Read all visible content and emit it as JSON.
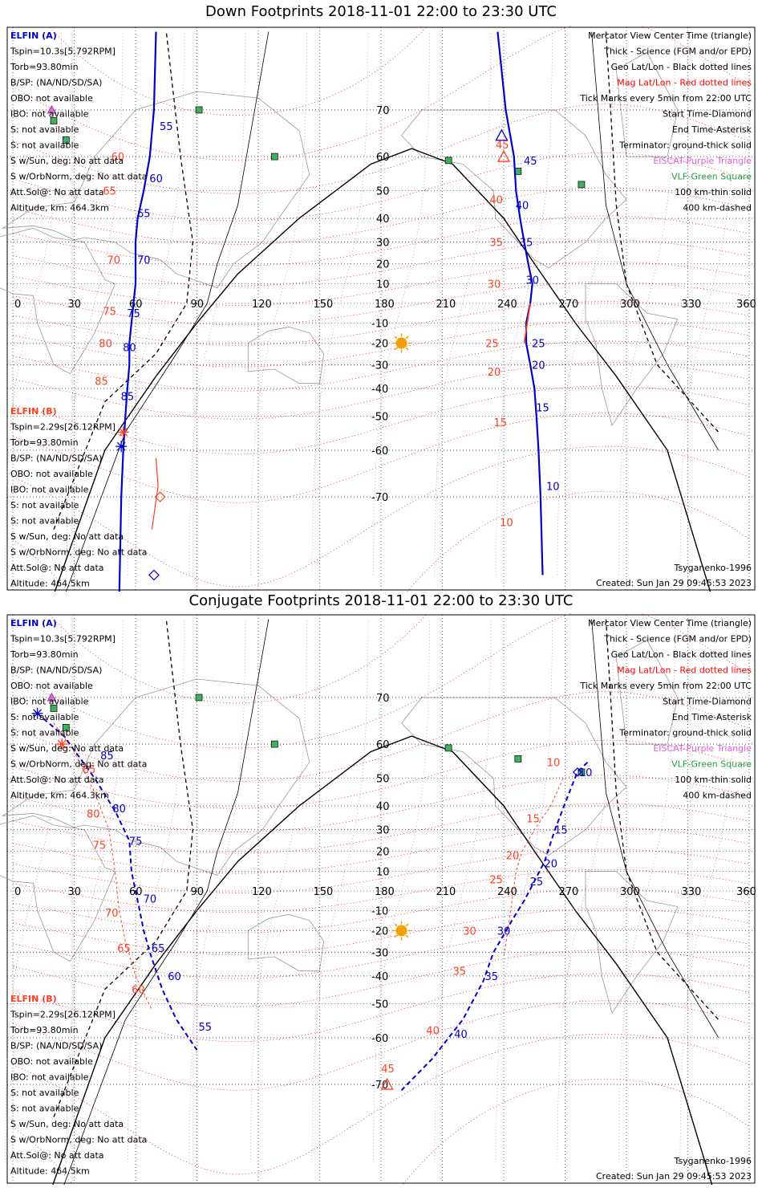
{
  "panels": [
    {
      "title": "Down Footprints 2018-11-01 22:00 to 23:30 UTC",
      "elfin_a": [
        "ELFIN (A)",
        "Tspin=10.3s[5.792RPM]",
        "Torb=93.80min",
        "B/SP: (NA/ND/SD/SA)",
        "OBO: not available",
        "IBO: not available",
        "S: not available",
        "S: not available",
        "S w/Sun, deg: No att data",
        "S w/OrbNorm, deg: No att data",
        "Att.Sol@: No att data",
        "Altitude, km: 464.3km"
      ],
      "elfin_b": [
        "ELFIN (B)",
        "Tspin=2.29s[26.12RPM]",
        "Torb=93.80min",
        "B/SP: (NA/ND/SD/SA)",
        "OBO: not available",
        "IBO: not available",
        "S: not available",
        "S: not available",
        "S w/Sun, deg: No att data",
        "S w/OrbNorm, deg: No att data",
        "Att.Sol@: No att data",
        "Altitude: 464.5km"
      ],
      "legend": [
        {
          "text": "Mercator View Center Time (triangle)",
          "color": "#000000"
        },
        {
          "text": "Thick - Science (FGM and/or EPD)",
          "color": "#000000"
        },
        {
          "text": "Geo Lat/Lon - Black dotted lines",
          "color": "#000000"
        },
        {
          "text": "Mag Lat/Lon - Red dotted lines",
          "color": "#ff0000"
        },
        {
          "text": "Tick Marks every 5min from 22:00 UTC",
          "color": "#000000"
        },
        {
          "text": "Start Time-Diamond",
          "color": "#000000"
        },
        {
          "text": "End Time-Asterisk",
          "color": "#000000"
        },
        {
          "text": "Terminator: ground-thick solid",
          "color": "#000000"
        },
        {
          "text": "EISCAT-Purple Triangle",
          "color": "#e060e0"
        },
        {
          "text": "VLF-Green Square",
          "color": "#20a040"
        },
        {
          "text": "100 km-thin solid",
          "color": "#000000"
        },
        {
          "text": "400 km-dashed",
          "color": "#000000"
        }
      ],
      "model": "Tsyganenko-1996",
      "created": "Created: Sun Jan 29 09:45:53 2023",
      "a_track_labels": [
        {
          "t": "55",
          "lon": 71,
          "lat": 67
        },
        {
          "t": "60",
          "lon": 66,
          "lat": 54
        },
        {
          "t": "65",
          "lon": 60,
          "lat": 42
        },
        {
          "t": "70",
          "lon": 60,
          "lat": 22
        },
        {
          "t": "75",
          "lon": 55,
          "lat": -5
        },
        {
          "t": "80",
          "lon": 53,
          "lat": -22
        },
        {
          "t": "85",
          "lon": 52,
          "lat": -43
        },
        {
          "t": "45",
          "lon": 249,
          "lat": 59
        },
        {
          "t": "40",
          "lon": 245,
          "lat": 45
        },
        {
          "t": "35",
          "lon": 247,
          "lat": 30
        },
        {
          "t": "30",
          "lon": 250,
          "lat": 12
        },
        {
          "t": "25",
          "lon": 253,
          "lat": -20
        },
        {
          "t": "20",
          "lon": 253,
          "lat": -30
        },
        {
          "t": "15",
          "lon": 255,
          "lat": -47
        },
        {
          "t": "10",
          "lon": 260,
          "lat": -68
        }
      ],
      "b_track_labels": [
        {
          "t": "60",
          "lon": 52,
          "lat": 60
        },
        {
          "t": "65",
          "lon": 48,
          "lat": 50
        },
        {
          "t": "70",
          "lon": 50,
          "lat": 22
        },
        {
          "t": "75",
          "lon": 48,
          "lat": -4
        },
        {
          "t": "80",
          "lon": 46,
          "lat": -20
        },
        {
          "t": "85",
          "lon": 44,
          "lat": -37
        },
        {
          "t": "45",
          "lon": 240,
          "lat": 63
        },
        {
          "t": "40",
          "lon": 237,
          "lat": 47
        },
        {
          "t": "35",
          "lon": 237,
          "lat": 30
        },
        {
          "t": "30",
          "lon": 236,
          "lat": 10
        },
        {
          "t": "25",
          "lon": 235,
          "lat": -20
        },
        {
          "t": "20",
          "lon": 236,
          "lat": -33
        },
        {
          "t": "15",
          "lon": 239,
          "lat": -52
        },
        {
          "t": "10",
          "lon": 242,
          "lat": -74
        }
      ]
    },
    {
      "title": "Conjugate Footprints 2018-11-01 22:00 to 23:30 UTC",
      "elfin_a": [
        "ELFIN (A)",
        "Tspin=10.3s[5.792RPM]",
        "Torb=93.80min",
        "B/SP: (NA/ND/SD/SA)",
        "OBO: not available",
        "IBO: not available",
        "S: not available",
        "S: not available",
        "S w/Sun, deg: No att data",
        "S w/OrbNorm, deg: No att data",
        "Att.Sol@: No att data",
        "Altitude, km: 464.3km"
      ],
      "elfin_b": [
        "ELFIN (B)",
        "Tspin=2.29s[26.12RPM]",
        "Torb=93.80min",
        "B/SP: (NA/ND/SD/SA)",
        "OBO: not available",
        "IBO: not available",
        "S: not available",
        "S: not available",
        "S w/Sun, deg: No att data",
        "S w/OrbNorm, deg: No att data",
        "Att.Sol@: No att data",
        "Altitude: 464.5km"
      ],
      "legend": [
        {
          "text": "Mercator View Center Time (triangle)",
          "color": "#000000"
        },
        {
          "text": "Thick - Science (FGM and/or EPD)",
          "color": "#000000"
        },
        {
          "text": "Geo Lat/Lon - Black dotted lines",
          "color": "#000000"
        },
        {
          "text": "Mag Lat/Lon - Red dotted lines",
          "color": "#ff0000"
        },
        {
          "text": "Tick Marks every 5min from 22:00 UTC",
          "color": "#000000"
        },
        {
          "text": "Start Time-Diamond",
          "color": "#000000"
        },
        {
          "text": "End Time-Asterisk",
          "color": "#000000"
        },
        {
          "text": "Terminator: ground-thick solid",
          "color": "#000000"
        },
        {
          "text": "EISCAT-Purple Triangle",
          "color": "#e060e0"
        },
        {
          "text": "VLF-Green Square",
          "color": "#20a040"
        },
        {
          "text": "100 km-thin solid",
          "color": "#000000"
        },
        {
          "text": "400 km-dashed",
          "color": "#000000"
        }
      ],
      "model": "Tsyganenko-1996",
      "created": "Created: Sun Jan 29 09:45:53 2023",
      "a_track_labels": [
        {
          "t": "85",
          "lon": 42,
          "lat": 57
        },
        {
          "t": "80",
          "lon": 48,
          "lat": 39
        },
        {
          "t": "75",
          "lon": 56,
          "lat": 25
        },
        {
          "t": "70",
          "lon": 63,
          "lat": -4
        },
        {
          "t": "65",
          "lon": 67,
          "lat": -28
        },
        {
          "t": "60",
          "lon": 75,
          "lat": -40
        },
        {
          "t": "55",
          "lon": 90,
          "lat": -57
        },
        {
          "t": "10",
          "lon": 276,
          "lat": 52
        },
        {
          "t": "15",
          "lon": 264,
          "lat": 30
        },
        {
          "t": "20",
          "lon": 259,
          "lat": 14
        },
        {
          "t": "25",
          "lon": 252,
          "lat": 5
        },
        {
          "t": "30",
          "lon": 236,
          "lat": -20
        },
        {
          "t": "35",
          "lon": 230,
          "lat": -40
        },
        {
          "t": "40",
          "lon": 215,
          "lat": -59
        }
      ],
      "b_track_labels": [
        {
          "t": "85",
          "lon": 38,
          "lat": 53
        },
        {
          "t": "80",
          "lon": 40,
          "lat": 37
        },
        {
          "t": "75",
          "lon": 43,
          "lat": 23
        },
        {
          "t": "70",
          "lon": 49,
          "lat": -11
        },
        {
          "t": "65",
          "lon": 55,
          "lat": -28
        },
        {
          "t": "60",
          "lon": 62,
          "lat": -45
        },
        {
          "t": "10",
          "lon": 265,
          "lat": 55
        },
        {
          "t": "15",
          "lon": 255,
          "lat": 35
        },
        {
          "t": "20",
          "lon": 245,
          "lat": 18
        },
        {
          "t": "25",
          "lon": 237,
          "lat": 6
        },
        {
          "t": "30",
          "lon": 224,
          "lat": -20
        },
        {
          "t": "35",
          "lon": 219,
          "lat": -38
        },
        {
          "t": "40",
          "lon": 206,
          "lat": -58
        },
        {
          "t": "45",
          "lon": 184,
          "lat": -67
        }
      ]
    }
  ],
  "lon_ticks": [
    "0",
    "30",
    "60",
    "90",
    "120",
    "150",
    "180",
    "210",
    "240",
    "270",
    "300",
    "330",
    "360"
  ],
  "lat_ticks": [
    "70",
    "60",
    "50",
    "40",
    "30",
    "20",
    "10",
    "-10",
    "-20",
    "-30",
    "-40",
    "-50",
    "-60",
    "-70"
  ],
  "map_data": {
    "down": {
      "a_science_west": [
        [
          70,
          80
        ],
        [
          69,
          70
        ],
        [
          67,
          60
        ],
        [
          64,
          50
        ],
        [
          61,
          40
        ],
        [
          60,
          30
        ],
        [
          60,
          20
        ],
        [
          60,
          10
        ],
        [
          59,
          0
        ],
        [
          58,
          -10
        ],
        [
          57,
          -20
        ],
        [
          57,
          -30
        ],
        [
          56,
          -40
        ],
        [
          55,
          -50
        ],
        [
          54,
          -60
        ],
        [
          53,
          -70
        ],
        [
          52,
          -82
        ]
      ],
      "a_science_east": [
        [
          237,
          80
        ],
        [
          241,
          70
        ],
        [
          245,
          60
        ],
        [
          246,
          50
        ],
        [
          248,
          40
        ],
        [
          250,
          30
        ],
        [
          252,
          20
        ],
        [
          254,
          10
        ],
        [
          253,
          0
        ],
        [
          251,
          -10
        ],
        [
          251,
          -20
        ],
        [
          253,
          -30
        ],
        [
          255,
          -40
        ],
        [
          256,
          -50
        ],
        [
          257,
          -60
        ],
        [
          258,
          -70
        ],
        [
          259,
          -80
        ]
      ],
      "b_west": [
        [
          68,
          -75
        ],
        [
          71,
          -68
        ],
        [
          70,
          -62
        ]
      ],
      "b_east_seg": [
        [
          253,
          0
        ],
        [
          250,
          -20
        ]
      ],
      "a_start": [
        69,
        -80
      ],
      "a_end": [
        53,
        -59
      ],
      "b_start": [
        72,
        -70
      ],
      "b_end": [
        54,
        -55
      ],
      "a_view": [
        239,
        65
      ],
      "b_view": [
        240,
        60
      ],
      "terminator_ground": [
        [
          10,
          -90
        ],
        [
          45,
          -60
        ],
        [
          70,
          -35
        ],
        [
          90,
          -10
        ],
        [
          110,
          15
        ],
        [
          140,
          40
        ],
        [
          175,
          58
        ],
        [
          195,
          62
        ],
        [
          215,
          58
        ],
        [
          240,
          40
        ],
        [
          255,
          20
        ],
        [
          275,
          -10
        ],
        [
          295,
          -35
        ],
        [
          320,
          -60
        ],
        [
          350,
          -90
        ]
      ],
      "terminator_100": [
        [
          15,
          -90
        ],
        [
          55,
          -55
        ],
        [
          80,
          -25
        ],
        [
          95,
          0
        ],
        [
          100,
          20
        ],
        [
          110,
          45
        ],
        [
          125,
          80
        ]
      ],
      "terminator_100_east": [
        [
          283,
          80
        ],
        [
          290,
          45
        ],
        [
          300,
          10
        ],
        [
          320,
          -30
        ],
        [
          345,
          -60
        ]
      ],
      "terminator_400_west": [
        [
          20,
          -75
        ],
        [
          45,
          -45
        ],
        [
          70,
          -25
        ],
        [
          85,
          0
        ],
        [
          88,
          30
        ],
        [
          82,
          60
        ],
        [
          75,
          80
        ]
      ],
      "terminator_400_east": [
        [
          290,
          80
        ],
        [
          295,
          45
        ],
        [
          300,
          10
        ],
        [
          315,
          -30
        ],
        [
          345,
          -55
        ]
      ]
    },
    "conj": {
      "a_west": [
        [
          12,
          67
        ],
        [
          25,
          62
        ],
        [
          40,
          50
        ],
        [
          50,
          38
        ],
        [
          57,
          25
        ],
        [
          58,
          10
        ],
        [
          61,
          -5
        ],
        [
          64,
          -20
        ],
        [
          67,
          -30
        ],
        [
          73,
          -45
        ],
        [
          80,
          -55
        ],
        [
          90,
          -63
        ]
      ],
      "b_west": [
        [
          20,
          65
        ],
        [
          30,
          58
        ],
        [
          40,
          45
        ],
        [
          47,
          30
        ],
        [
          50,
          10
        ],
        [
          52,
          -10
        ],
        [
          55,
          -25
        ],
        [
          60,
          -40
        ],
        [
          68,
          -52
        ]
      ],
      "a_east": [
        [
          281,
          55
        ],
        [
          276,
          52
        ],
        [
          272,
          45
        ],
        [
          265,
          30
        ],
        [
          260,
          15
        ],
        [
          255,
          5
        ],
        [
          250,
          -5
        ],
        [
          244,
          -15
        ],
        [
          240,
          -22
        ],
        [
          235,
          -30
        ],
        [
          230,
          -42
        ],
        [
          220,
          -55
        ],
        [
          205,
          -65
        ],
        [
          190,
          -71
        ]
      ],
      "b_east": [
        [
          269,
          50
        ],
        [
          263,
          40
        ],
        [
          255,
          30
        ],
        [
          249,
          20
        ],
        [
          246,
          10
        ],
        [
          244,
          -5
        ],
        [
          242,
          -20
        ],
        [
          240,
          -32
        ]
      ],
      "a_start": [
        276,
        52
      ],
      "a_end": [
        12,
        67
      ],
      "b_view": [
        183,
        -70
      ],
      "b_end": [
        24,
        60
      ],
      "terminator_ground": [
        [
          10,
          -90
        ],
        [
          45,
          -60
        ],
        [
          70,
          -35
        ],
        [
          90,
          -10
        ],
        [
          110,
          15
        ],
        [
          140,
          40
        ],
        [
          175,
          58
        ],
        [
          195,
          62
        ],
        [
          215,
          58
        ],
        [
          240,
          40
        ],
        [
          255,
          20
        ],
        [
          275,
          -10
        ],
        [
          295,
          -35
        ],
        [
          320,
          -60
        ],
        [
          350,
          -90
        ]
      ],
      "terminator_100": [
        [
          15,
          -90
        ],
        [
          55,
          -55
        ],
        [
          80,
          -25
        ],
        [
          95,
          0
        ],
        [
          100,
          20
        ],
        [
          110,
          45
        ],
        [
          125,
          80
        ]
      ],
      "terminator_100_east": [
        [
          283,
          80
        ],
        [
          290,
          45
        ],
        [
          300,
          10
        ],
        [
          320,
          -30
        ],
        [
          345,
          -60
        ]
      ],
      "terminator_400_west": [
        [
          20,
          -75
        ],
        [
          45,
          -45
        ],
        [
          70,
          -25
        ],
        [
          85,
          0
        ],
        [
          88,
          30
        ],
        [
          82,
          60
        ],
        [
          75,
          80
        ]
      ],
      "terminator_400_east": [
        [
          290,
          80
        ],
        [
          295,
          45
        ],
        [
          300,
          10
        ],
        [
          315,
          -30
        ],
        [
          345,
          -55
        ]
      ]
    },
    "sun": [
      190,
      -20
    ],
    "vlf_sites": [
      [
        20,
        68
      ],
      [
        26,
        64
      ],
      [
        91,
        70
      ],
      [
        128,
        60
      ],
      [
        213,
        59
      ],
      [
        247,
        56
      ],
      [
        278,
        52
      ]
    ],
    "eiscat_sites": [
      [
        19,
        70
      ]
    ]
  },
  "colors": {
    "elfin_a": "#0000cc",
    "elfin_b": "#ff4020",
    "mag_grid": "#ee0000",
    "geo_grid": "#000000",
    "meridian": "#dd66dd",
    "coast": "#999999",
    "vlf": "#3fb060",
    "sun": "#f0a000"
  }
}
